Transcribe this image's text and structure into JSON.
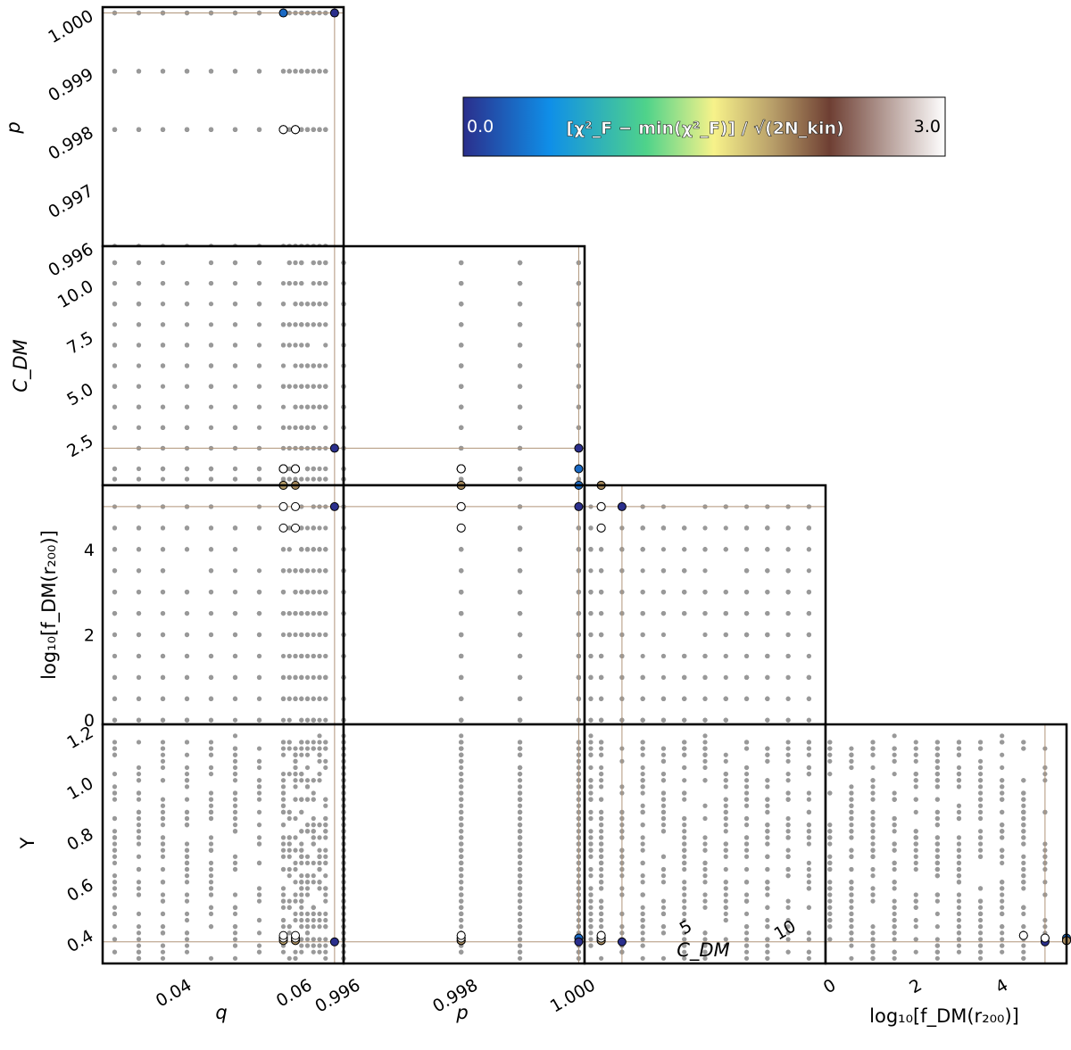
{
  "chart_data": {
    "type": "scatter",
    "title": "",
    "parameters": [
      "q",
      "p",
      "C_DM",
      "log10[f_DM(r200)]",
      "Y"
    ],
    "axis_labels": {
      "q": "q",
      "p": "p",
      "C_DM": "C_DM",
      "log10[f_DM(r200)]": "log₁₀[f_DM(r₂₀₀)]",
      "Y": "Υ"
    },
    "axis_ranges": {
      "q": [
        0.028,
        0.068
      ],
      "p": [
        0.996,
        1.0001
      ],
      "C_DM": [
        0.2,
        11.8
      ],
      "log10[f_DM(r200)]": [
        -0.1,
        5.5
      ],
      "Y": [
        0.28,
        1.22
      ]
    },
    "ticks": {
      "q": [
        "0.04",
        "0.06"
      ],
      "p": [
        "0.996",
        "0.997",
        "0.998",
        "0.999",
        "1.000"
      ],
      "p_bottom": [
        "0.996",
        "0.998",
        "1.000"
      ],
      "C_DM_left": [
        "2.5",
        "5.0",
        "7.5",
        "10.0"
      ],
      "C_DM_bottom": [
        "5",
        "10"
      ],
      "log10[f_DM(r200)]": [
        "0",
        "2",
        "4"
      ],
      "Y": [
        "0.4",
        "0.6",
        "0.8",
        "1.0",
        "1.2"
      ]
    },
    "best_fit": {
      "q": 0.0665,
      "p": 1.0,
      "C_DM": 2.0,
      "log10[f_DM(r200)]": 5.0,
      "Y": 0.365
    },
    "highlighted_models": [
      {
        "q": 0.058,
        "p": 1.0,
        "C_DM": 1.0,
        "log10[f_DM(r200)]": 5.5,
        "Y": 0.38,
        "score": 0.3
      },
      {
        "q": 0.0665,
        "p": 1.0,
        "C_DM": 2.0,
        "log10[f_DM(r200)]": 5.0,
        "Y": 0.365,
        "score": 0.0
      },
      {
        "q": 0.058,
        "p": 0.998,
        "C_DM": 1.0,
        "log10[f_DM(r200)]": 5.5,
        "Y": 0.37,
        "score": 2.0
      },
      {
        "q": 0.06,
        "p": 0.998,
        "C_DM": 1.0,
        "log10[f_DM(r200)]": 5.5,
        "Y": 0.37,
        "score": 2.1
      },
      {
        "q": 0.058,
        "p": 0.998,
        "C_DM": 1.0,
        "log10[f_DM(r200)]": 5.0,
        "Y": 0.38,
        "score": 3.0
      },
      {
        "q": 0.06,
        "p": 0.998,
        "C_DM": 1.0,
        "log10[f_DM(r200)]": 5.0,
        "Y": 0.38,
        "score": 3.0
      },
      {
        "q": 0.058,
        "p": 0.998,
        "C_DM": 1.0,
        "log10[f_DM(r200)]": 4.5,
        "Y": 0.39,
        "score": 3.0
      },
      {
        "q": 0.06,
        "p": 0.998,
        "C_DM": 1.0,
        "log10[f_DM(r200)]": 4.5,
        "Y": 0.39,
        "score": 3.0
      }
    ],
    "colorbar": {
      "label": "[χ²_F − min(χ²_F)] / √(2N_kin)",
      "min": 0.0,
      "max": 3.0,
      "min_label": "0.0",
      "max_label": "3.0",
      "colors": [
        "#2b2f8c",
        "#0f8fe8",
        "#4fd38a",
        "#f7f28a",
        "#b9a06a",
        "#6e3f33",
        "#ffffff"
      ],
      "location": "top-right"
    },
    "colors": {
      "grid_points": "#999999",
      "best_fit_line": "#b0957a",
      "frame": "#000000"
    }
  }
}
